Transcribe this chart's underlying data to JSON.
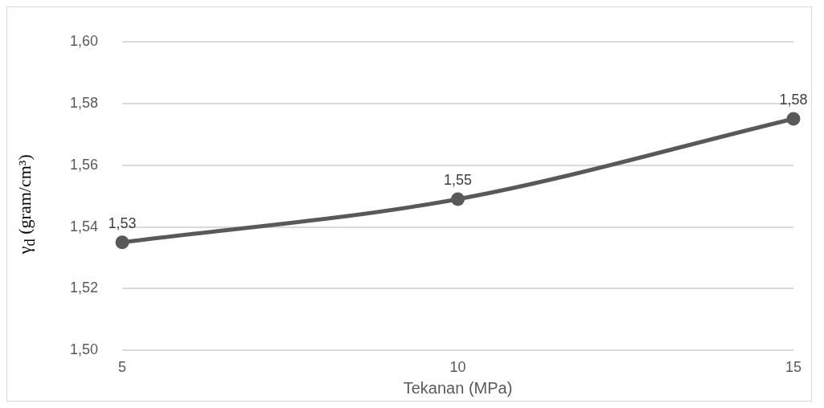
{
  "chart_data": {
    "type": "line",
    "xlabel": "Tekanan (MPa)",
    "ylabel": "γ$_{d}$ (gram/cm³)",
    "categories": [
      "5",
      "10",
      "15"
    ],
    "series": [
      {
        "color": "#595959",
        "values": [
          1.535,
          1.549,
          1.575
        ],
        "value_labels": [
          "1,53",
          "1,55",
          "1,58"
        ]
      }
    ],
    "ylim": [
      1.5,
      1.6
    ],
    "yticks": [
      {
        "value": 1.5,
        "label": "1,50"
      },
      {
        "value": 1.52,
        "label": "1,52"
      },
      {
        "value": 1.54,
        "label": "1,54"
      },
      {
        "value": 1.56,
        "label": "1,56"
      },
      {
        "value": 1.58,
        "label": "1,58"
      },
      {
        "value": 1.6,
        "label": "1,60"
      }
    ],
    "grid": "y",
    "legend": false,
    "marker": "circle",
    "line_style": "solid"
  }
}
